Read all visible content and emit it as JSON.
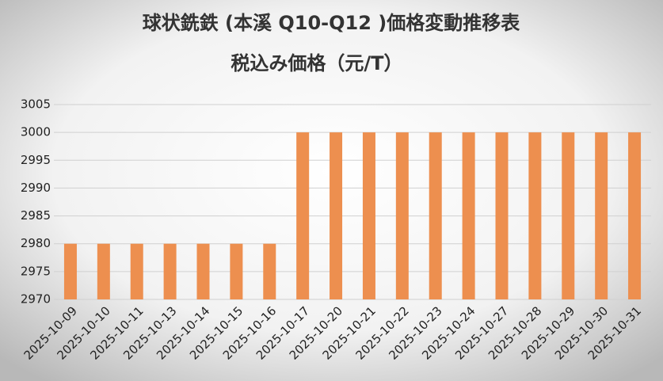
{
  "chart_data": {
    "type": "bar",
    "title": "球状銑鉄 (本溪 Q10-Q12 )価格変動推移表",
    "subtitle": "税込み価格（元/T）",
    "categories": [
      "2025-10-09",
      "2025-10-10",
      "2025-10-11",
      "2025-10-13",
      "2025-10-14",
      "2025-10-15",
      "2025-10-16",
      "2025-10-17",
      "2025-10-20",
      "2025-10-21",
      "2025-10-22",
      "2025-10-23",
      "2025-10-24",
      "2025-10-27",
      "2025-10-28",
      "2025-10-29",
      "2025-10-30",
      "2025-10-31"
    ],
    "values": [
      2980,
      2980,
      2980,
      2980,
      2980,
      2980,
      2980,
      3000,
      3000,
      3000,
      3000,
      3000,
      3000,
      3000,
      3000,
      3000,
      3000,
      3000
    ],
    "color": "#ed8f4f",
    "ylim": [
      2970,
      3005
    ],
    "yticks": [
      2970,
      2975,
      2980,
      2985,
      2990,
      2995,
      3000,
      3005
    ],
    "grid": true
  }
}
